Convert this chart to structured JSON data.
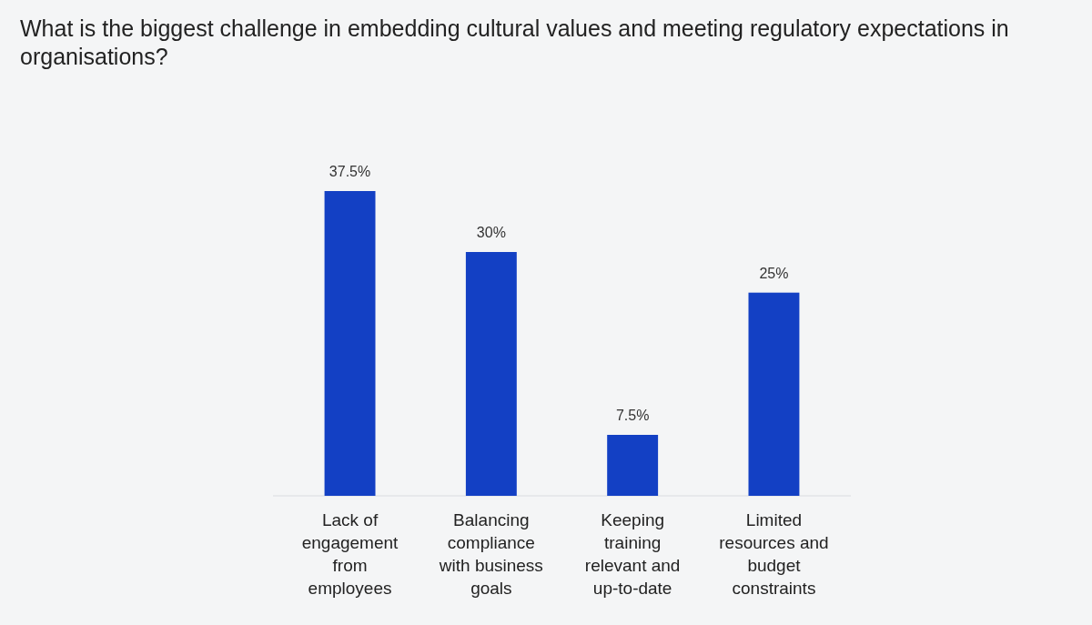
{
  "chart_data": {
    "type": "bar",
    "title": "What is the biggest challenge in embedding cultural values and meeting regulatory expectations in organisations?",
    "categories": [
      "Lack of engagement from employees",
      "Balancing compliance with business goals",
      "Keeping training relevant and up-to-date",
      "Limited resources and budget constraints"
    ],
    "values": [
      37.5,
      30,
      7.5,
      25
    ],
    "color": "#1340c4",
    "value_labels": [
      "37.5%",
      "30%",
      "7.5%",
      "25%"
    ]
  }
}
